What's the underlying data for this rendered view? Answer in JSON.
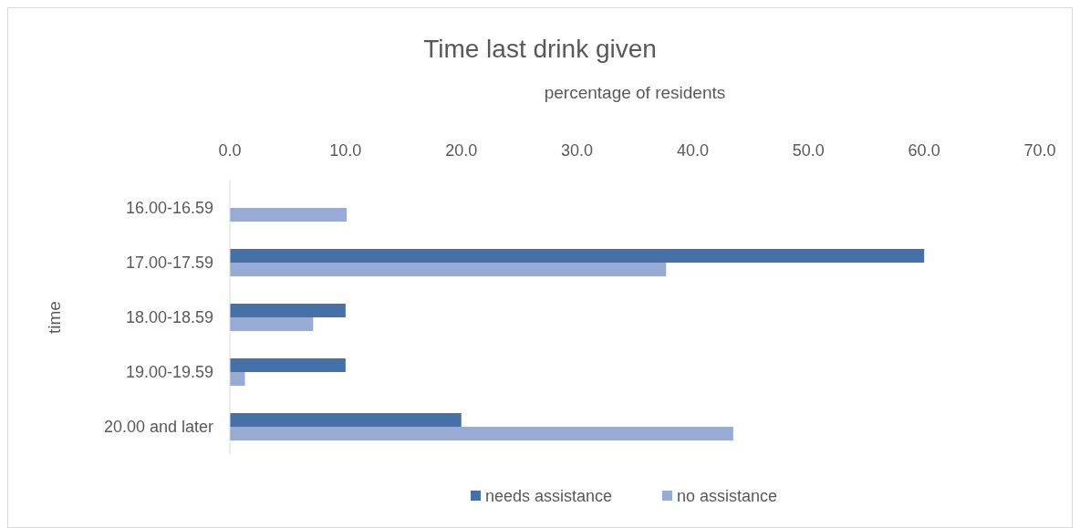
{
  "chart_data": {
    "type": "bar",
    "orientation": "horizontal",
    "title": "Time last drink given",
    "xlabel": "percentage of residents",
    "ylabel": "time",
    "categories": [
      "16.00-16.59",
      "17.00-17.59",
      "18.00-18.59",
      "19.00-19.59",
      "20.00 and later"
    ],
    "series": [
      {
        "name": "needs assistance",
        "color": "#4670a8",
        "values": [
          null,
          60.0,
          10.0,
          10.0,
          20.0
        ]
      },
      {
        "name": "no assistance",
        "color": "#97abd4",
        "values": [
          10.1,
          37.7,
          7.2,
          1.3,
          43.5
        ]
      }
    ],
    "xlim": [
      0,
      70
    ],
    "xticks": [
      {
        "value": 0,
        "label": "0.0"
      },
      {
        "value": 10,
        "label": "10.0"
      },
      {
        "value": 20,
        "label": "20.0"
      },
      {
        "value": 30,
        "label": "30.0"
      },
      {
        "value": 40,
        "label": "40.0"
      },
      {
        "value": 50,
        "label": "50.0"
      },
      {
        "value": 60,
        "label": "60.0"
      },
      {
        "value": 70,
        "label": "70.0"
      }
    ],
    "grid": false,
    "legend": "bottom"
  }
}
